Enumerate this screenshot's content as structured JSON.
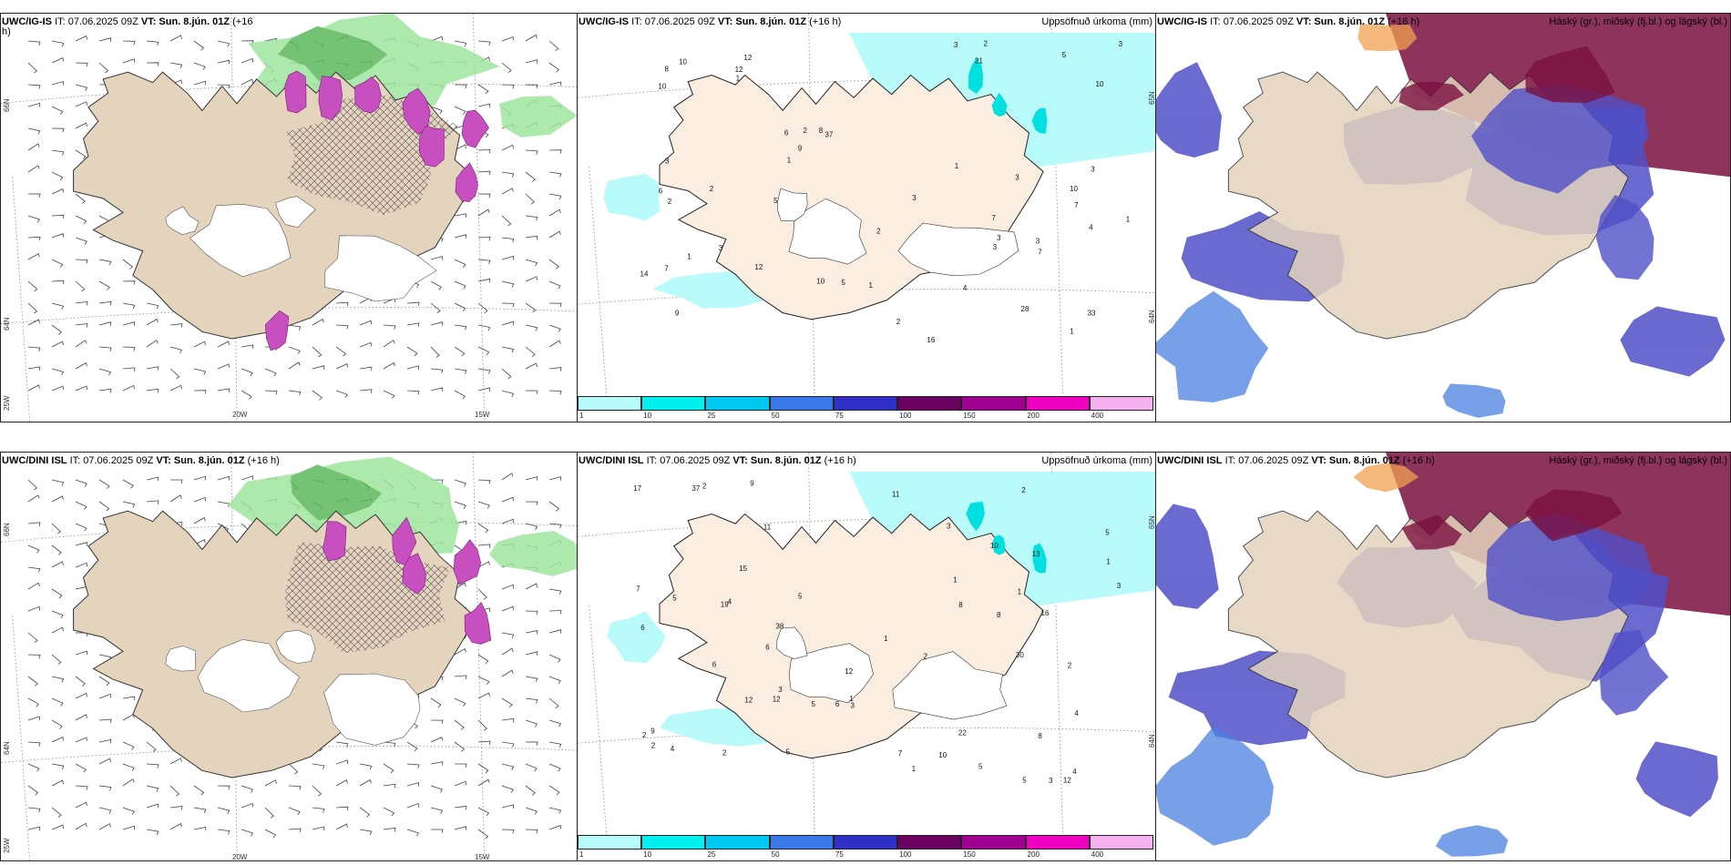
{
  "rows": [
    {
      "panels": [
        {
          "header": {
            "model": "UWC/IG-IS",
            "it": "IT: 07.06.2025 09Z",
            "vt": "VT: Sun. 8.jún. 01Z",
            "lead": "(+16",
            "lead2": "h)",
            "right": ""
          },
          "axes": {
            "lat_n": "66N",
            "lat_s": "64N",
            "lon_w": "20W",
            "lon_e": "15W",
            "corner": "25W"
          }
        },
        {
          "header": {
            "model": "UWC/IG-IS",
            "it": "IT: 07.06.2025 09Z",
            "vt": "VT: Sun. 8.jún. 01Z",
            "lead": "(+16 h)",
            "right": "Uppsöfnuð úrkoma (mm)"
          },
          "axes": {
            "lat_n": "65N",
            "lat_s": "64N"
          }
        },
        {
          "header": {
            "model": "UWC/IG-IS",
            "it": "IT: 07.06.2025 09Z",
            "vt": "VT: Sun. 8.jún. 01Z",
            "lead": "(+16 h)",
            "right": "Háský (gr.), miðský (fj.bl.) og lágský (bl.)"
          }
        }
      ]
    },
    {
      "panels": [
        {
          "header": {
            "model": "UWC/DINI ISL",
            "it": "IT: 07.06.2025 09Z",
            "vt": "VT: Sun. 8.jún. 01Z",
            "lead": "(+16 h)",
            "right": ""
          },
          "axes": {
            "lat_n": "66N",
            "lat_s": "64N",
            "lon_w": "20W",
            "lon_e": "15W",
            "corner": "25W"
          }
        },
        {
          "header": {
            "model": "UWC/DINI ISL",
            "it": "IT: 07.06.2025 09Z",
            "vt": "VT: Sun. 8.jún. 01Z",
            "lead": "(+16 h)",
            "right": "Uppsöfnuð úrkoma (mm)"
          },
          "axes": {
            "lat_n": "65N",
            "lat_s": "64N"
          }
        },
        {
          "header": {
            "model": "UWC/DINI ISL",
            "it": "IT: 07.06.2025 09Z",
            "vt": "VT: Sun. 8.jún. 01Z",
            "lead": "(+16 h)",
            "right": "Háský (gr.), miðský (fj.bl.) og lágský (bl.)"
          }
        }
      ]
    }
  ],
  "precip_legend": {
    "colors": [
      "#b9fbfb",
      "#00f0f0",
      "#00c8f0",
      "#3a78e8",
      "#3030c8",
      "#6a0060",
      "#a00090",
      "#f000c0",
      "#f5b0f0"
    ],
    "ticks": [
      "1",
      "10",
      "25",
      "50",
      "75",
      "100",
      "150",
      "200",
      "400"
    ]
  },
  "precip_labels_top": [
    "7",
    "7",
    "9",
    "12",
    "37",
    "28",
    "7",
    "21",
    "6",
    "16",
    "10",
    "6",
    "8",
    "33",
    "10",
    "3",
    "2",
    "3",
    "8",
    "3",
    "3",
    "5",
    "1",
    "4",
    "3",
    "12",
    "3",
    "2",
    "1",
    "3",
    "2",
    "4",
    "9",
    "5",
    "10",
    "7",
    "3",
    "2",
    "1",
    "1",
    "10",
    "2",
    "1",
    "5",
    "3",
    "12",
    "14",
    "10",
    "1",
    "3",
    "1",
    "2"
  ],
  "precip_labels_bottom": [
    "12",
    "19",
    "37",
    "30",
    "12",
    "11",
    "6",
    "6",
    "12",
    "8",
    "16",
    "11",
    "17",
    "5",
    "38",
    "22",
    "1",
    "3",
    "5",
    "5",
    "3",
    "4",
    "10",
    "12",
    "8",
    "8",
    "7",
    "9",
    "13",
    "2",
    "3",
    "5",
    "4",
    "4",
    "10",
    "7",
    "5",
    "2",
    "6",
    "5",
    "6",
    "4",
    "2",
    "5",
    "3",
    "2",
    "1",
    "15",
    "9",
    "3",
    "1",
    "1",
    "2",
    "2",
    "1",
    "1",
    "2"
  ],
  "colors": {
    "land": "#e4d3bd",
    "rain": "#b9fbfb",
    "snow_green": "#9fe49f",
    "high_cloud": "#7a1040",
    "mid_cloud": "#5050c8",
    "low_cloud": "#4a80e0"
  }
}
